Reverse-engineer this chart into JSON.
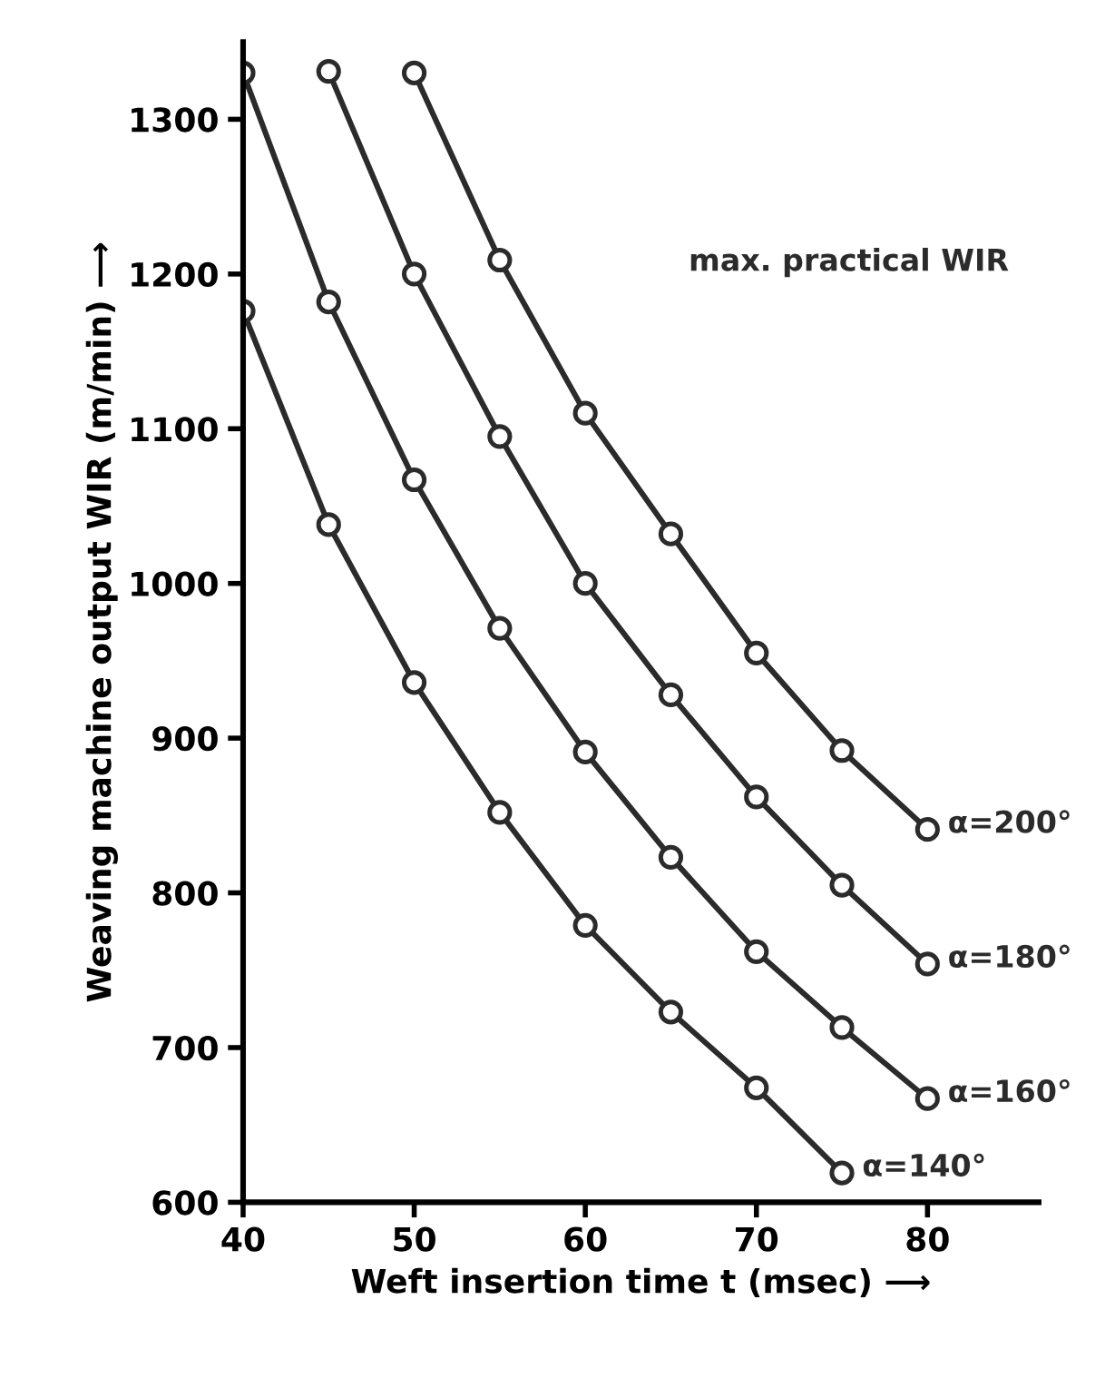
{
  "chart_data": {
    "type": "line",
    "xlabel": "Weft insertion time t (msec) ⟶",
    "ylabel": "Weaving machine output WIR (m/min) ⟶",
    "annotations": [
      "max. practical WIR"
    ],
    "series": [
      {
        "name": "α=140°",
        "color": "#2b2b2b",
        "x": [
          40,
          45,
          50,
          55,
          60,
          65,
          70,
          75
        ],
        "values": [
          1176,
          1038,
          936,
          852,
          779,
          723,
          674,
          619
        ]
      },
      {
        "name": "α=160°",
        "color": "#2b2b2b",
        "x": [
          40,
          45,
          50,
          55,
          60,
          65,
          70,
          75,
          80
        ],
        "values": [
          1330,
          1182,
          1067,
          971,
          891,
          823,
          762,
          713,
          667
        ]
      },
      {
        "name": "α=180°",
        "color": "#2b2b2b",
        "x": [
          45,
          50,
          55,
          60,
          65,
          70,
          75,
          80
        ],
        "values": [
          1331,
          1200,
          1095,
          1000,
          928,
          862,
          805,
          754
        ]
      },
      {
        "name": "α=200°",
        "color": "#2b2b2b",
        "x": [
          50,
          55,
          60,
          65,
          70,
          75,
          80
        ],
        "values": [
          1330,
          1209,
          1110,
          1032,
          955,
          892,
          841
        ]
      }
    ],
    "xlim": [
      40,
      86.5
    ],
    "ylim": [
      600,
      1350
    ],
    "xticks": [
      40,
      50,
      60,
      70,
      80
    ],
    "yticks": [
      600,
      700,
      800,
      900,
      1000,
      1100,
      1200,
      1300
    ],
    "grid": false,
    "legend": false,
    "marker": "circle",
    "line_style": "solid"
  }
}
